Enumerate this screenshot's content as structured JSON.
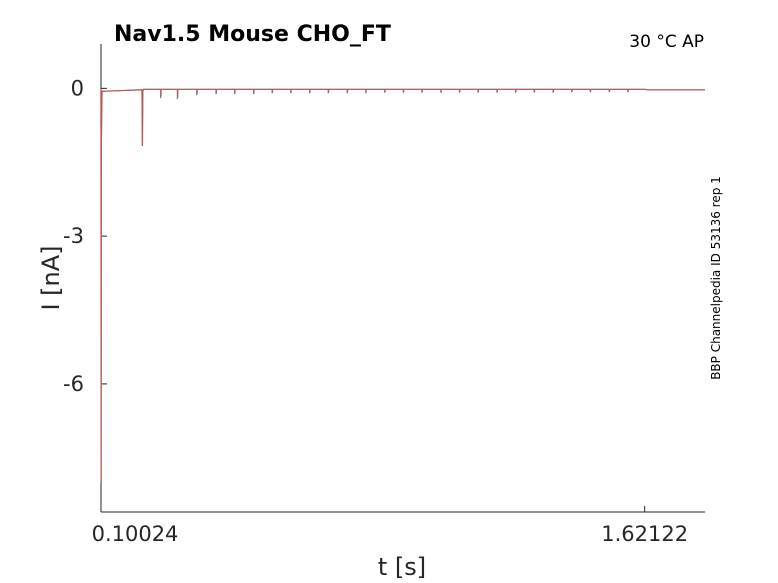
{
  "chart_data": {
    "type": "line",
    "title": "Nav1.5  Mouse  CHO_FT",
    "condition": "30 °C  AP",
    "side_label": "BBP Channelpedia ID 53136 rep 1",
    "xlabel": "t [s]",
    "ylabel": "I [nA]",
    "x_ticks": [
      0.10024,
      1.62122
    ],
    "x_tick_labels": [
      "0.10024",
      "1.62122"
    ],
    "y_ticks": [
      0,
      -3,
      -6
    ],
    "y_tick_labels": [
      "0",
      "-3",
      "-6"
    ],
    "xlim": [
      0.10024,
      1.79
    ],
    "ylim": [
      -8.6,
      0.9
    ],
    "grid": false,
    "series": [
      {
        "color": "#c0504d",
        "baseline": -0.02,
        "points": [
          [
            0.10024,
            -0.02
          ],
          [
            0.1005,
            -8.0
          ],
          [
            0.101,
            -1.2
          ],
          [
            0.103,
            -0.06
          ],
          [
            0.215,
            -0.03
          ],
          [
            0.216,
            -1.17
          ],
          [
            0.2172,
            -0.05
          ],
          [
            0.22,
            -0.02
          ],
          [
            1.62122,
            -0.02
          ],
          [
            1.63,
            -0.03
          ],
          [
            1.79,
            -0.03
          ]
        ],
        "spike_times": [
          0.267,
          0.314,
          0.368,
          0.422,
          0.474,
          0.527,
          0.579,
          0.631,
          0.684,
          0.736,
          0.789,
          0.841,
          0.894,
          0.946,
          0.998,
          1.051,
          1.103,
          1.155,
          1.208,
          1.26,
          1.312,
          1.365,
          1.417,
          1.469,
          1.522,
          1.574
        ],
        "spike_depths": [
          0.18,
          0.2,
          0.12,
          0.1,
          0.1,
          0.1,
          0.08,
          0.08,
          0.08,
          0.08,
          0.08,
          0.08,
          0.07,
          0.07,
          0.07,
          0.07,
          0.07,
          0.07,
          0.07,
          0.07,
          0.07,
          0.07,
          0.06,
          0.06,
          0.06,
          0.06
        ]
      }
    ]
  }
}
